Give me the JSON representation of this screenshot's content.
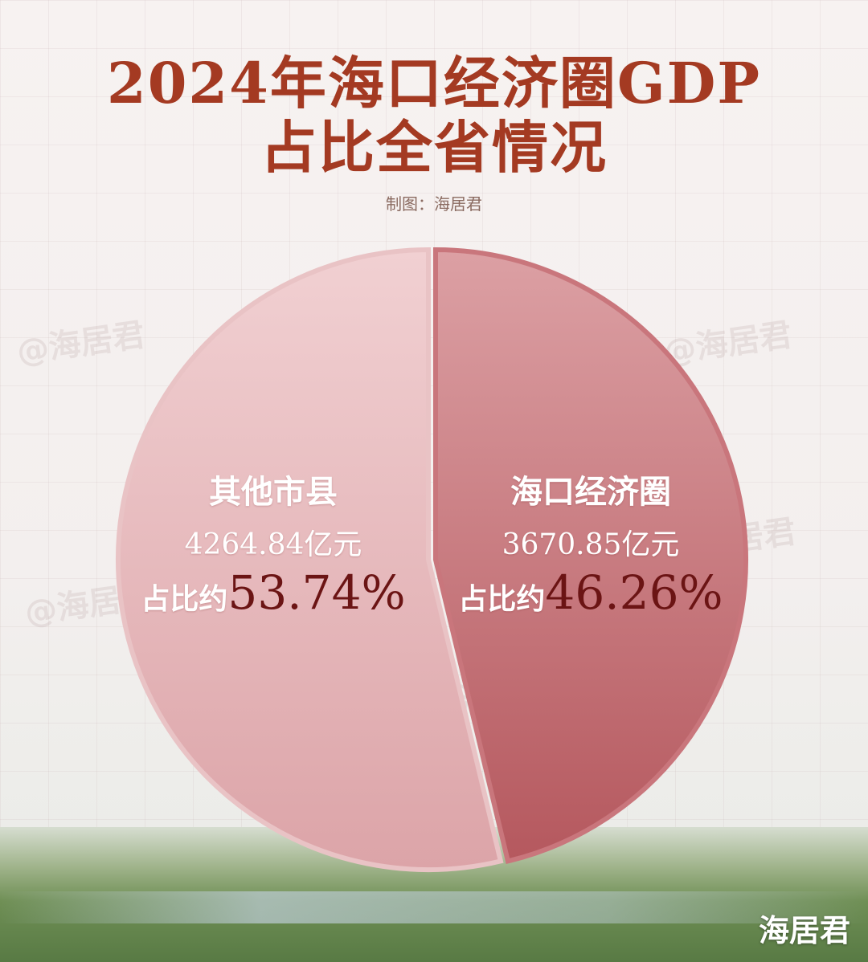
{
  "header": {
    "title_line1": "2024年海口经济圈GDP",
    "title_line2": "占比全省情况",
    "credit": "制图：海居君"
  },
  "watermark": "@海居君",
  "brand": "海居君",
  "colors": {
    "title": "#a43a22",
    "slice_other": "#e7b4b8",
    "slice_haikou": "#c8787c",
    "percent": "#6b1414"
  },
  "chart_data": {
    "type": "pie",
    "slices": [
      {
        "label": "其他市县",
        "value": 4264.84,
        "value_text": "4264.84亿元",
        "share": 53.74,
        "share_prefix": "占比约",
        "share_text": "53.74%"
      },
      {
        "label": "海口经济圈",
        "value": 3670.85,
        "value_text": "3670.85亿元",
        "share": 46.26,
        "share_prefix": "占比约",
        "share_text": "46.26%"
      }
    ],
    "title": "2024年海口经济圈GDP占比全省情况"
  }
}
